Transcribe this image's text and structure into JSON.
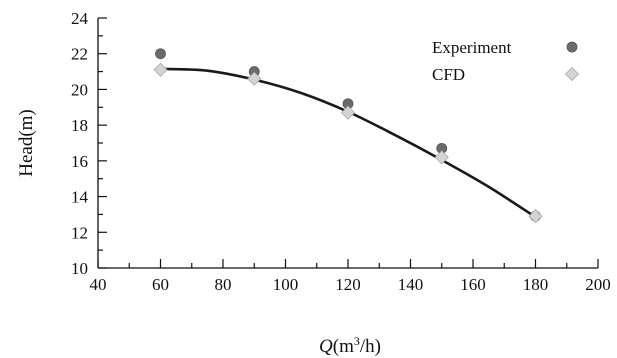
{
  "chart_data": {
    "type": "scatter",
    "title": "",
    "xlabel": {
      "italic": "Q",
      "base": "(m",
      "sup": "3",
      "tail": "/h)"
    },
    "ylabel": "Head(m)",
    "xlim": [
      40,
      200
    ],
    "ylim": [
      10,
      24
    ],
    "x_ticks": [
      40,
      60,
      80,
      100,
      120,
      140,
      160,
      180,
      200
    ],
    "y_ticks": [
      10,
      12,
      14,
      16,
      18,
      20,
      22,
      24
    ],
    "grid": false,
    "legend_position": "top-right",
    "series": [
      {
        "name": "Experiment",
        "marker": "circle",
        "color": "#6b6b6b",
        "x": [
          60,
          90,
          120,
          150,
          180
        ],
        "y": [
          22.0,
          21.0,
          19.2,
          16.7,
          12.9
        ]
      },
      {
        "name": "CFD",
        "marker": "diamond",
        "color": "#d4d4d4",
        "x": [
          60,
          90,
          120,
          150,
          180
        ],
        "y": [
          21.1,
          20.6,
          18.7,
          16.2,
          12.9
        ]
      }
    ],
    "fit_curve": {
      "color": "#1a1a1a",
      "x": [
        60,
        75,
        90,
        105,
        120,
        135,
        150,
        165,
        180
      ],
      "y": [
        21.15,
        21.05,
        20.55,
        19.8,
        18.75,
        17.45,
        16.05,
        14.55,
        12.85
      ]
    }
  }
}
